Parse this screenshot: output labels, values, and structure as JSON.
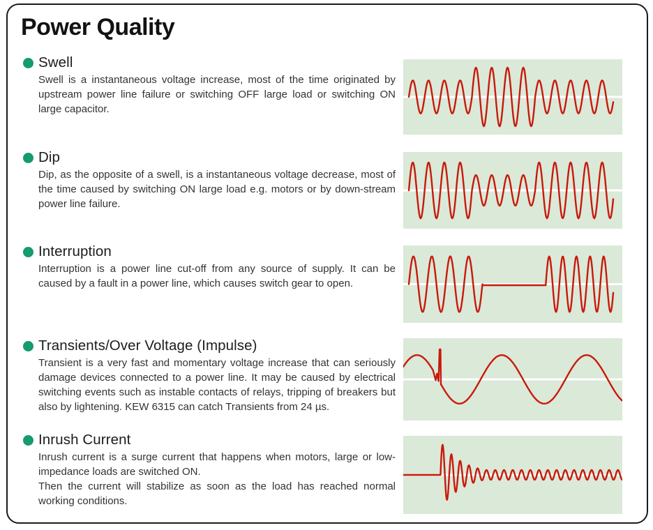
{
  "page": {
    "title": "Power Quality"
  },
  "colors": {
    "accent_green": "#169a6f",
    "wave_red": "#c8190c",
    "wave_bg": "#dbe9d8",
    "baseline_white": "#ffffff",
    "border": "#1a1a1a"
  },
  "sections": [
    {
      "heading": "Swell",
      "paragraphs": [
        "Swell is a instantaneous voltage increase, most of the time originated by upstream power line failure or switching OFF large load or switching ON large capacitor."
      ]
    },
    {
      "heading": "Dip",
      "paragraphs": [
        "Dip, as the opposite of a swell, is a instantaneous voltage decrease, most of the time caused by switching ON large load e.g. motors or by down-stream power line failure."
      ]
    },
    {
      "heading": "Interruption",
      "paragraphs": [
        "Interruption is a power line cut-off from any source of supply. It can be caused by a fault in a power line, which causes switch gear to open."
      ]
    },
    {
      "heading": "Transients/Over Voltage (Impulse)",
      "paragraphs": [
        "Transient is a very fast and momentary voltage increase that can seriously damage devices connected to a power line. It may be caused by electrical switching events such as instable contacts of relays, tripping of breakers but also by lightening. KEW 6315 can catch Transients from 24 µs."
      ]
    },
    {
      "heading": "Inrush Current",
      "paragraphs": [
        "Inrush current is a surge current that happens when motors, large or low-impedance loads are switched ON.",
        "Then the current will stabilize as soon as the load has reached normal working conditions."
      ]
    }
  ],
  "chart_data": [
    {
      "id": "swell",
      "type": "line",
      "title": "Swell waveform",
      "kind": "sine-segments",
      "inset": [
        8,
        13
      ],
      "description": "Sine wave: normal amplitude, temporary amplitude increase, back to normal",
      "segments": [
        {
          "w": 0.309,
          "cycles": 4,
          "amp": 0.44
        },
        {
          "w": 0.309,
          "cycles": 4,
          "amp": 0.78
        },
        {
          "w": 0.382,
          "cycles": 4.95,
          "amp": 0.44
        }
      ]
    },
    {
      "id": "dip",
      "type": "line",
      "title": "Dip waveform",
      "kind": "sine-segments",
      "inset": [
        8,
        13
      ],
      "description": "Sine wave: normal amplitude, temporary amplitude decrease, back to normal",
      "segments": [
        {
          "w": 0.309,
          "cycles": 4,
          "amp": 0.73
        },
        {
          "w": 0.309,
          "cycles": 4,
          "amp": 0.4
        },
        {
          "w": 0.382,
          "cycles": 4.95,
          "amp": 0.73
        }
      ]
    },
    {
      "id": "interruption",
      "type": "line",
      "title": "Interruption waveform",
      "kind": "sine-segments",
      "inset": [
        8,
        13
      ],
      "description": "Sine wave interrupted by a flat zero-voltage gap",
      "segments": [
        {
          "w": 0.36,
          "cycles": 4,
          "amp": 0.72
        },
        {
          "w": 0.31,
          "cycles": 0,
          "amp": 0,
          "flat": true
        },
        {
          "w": 0.33,
          "cycles": 4.95,
          "amp": 0.72
        }
      ]
    },
    {
      "id": "transient",
      "type": "line",
      "title": "Transient / over voltage (impulse) waveform",
      "kind": "transient",
      "description": "Slow sine wave with a narrow high-voltage spike glitch near the start",
      "sine": {
        "peak_x": 0.063,
        "period": 0.387,
        "amp": 0.59
      },
      "glitch": {
        "from": 0.138,
        "to": 0.172,
        "points": [
          [
            0.148,
            -0.02
          ],
          [
            0.154,
            0.14
          ],
          [
            0.161,
            -0.04
          ],
          [
            0.166,
            0.73
          ],
          [
            0.17,
            0.73
          ],
          [
            0.172,
            -0.13
          ]
        ]
      }
    },
    {
      "id": "inrush",
      "type": "line",
      "title": "Inrush current waveform",
      "kind": "inrush",
      "description": "Flat zero line, then large oscillation decaying exponentially to a small steady ripple",
      "flat_until": 0.17,
      "period": 0.04,
      "start_amp": 0.85,
      "decay": 9.5,
      "steady_amp": 0.125
    }
  ]
}
